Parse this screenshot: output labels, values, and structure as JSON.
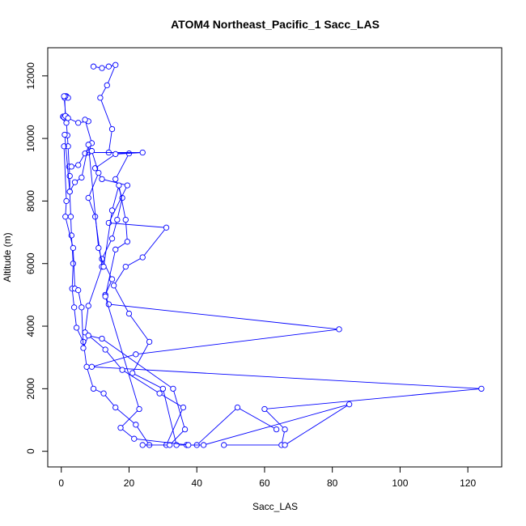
{
  "chart_data": {
    "type": "line",
    "title": "ATOM4 Northeast_Pacific_1 Sacc_LAS",
    "xlabel": "Sacc_LAS",
    "ylabel": "Altitude (m)",
    "xlim": [
      -4,
      130
    ],
    "ylim": [
      -500,
      12900
    ],
    "x_ticks": [
      0,
      20,
      40,
      60,
      80,
      100,
      120
    ],
    "y_ticks": [
      0,
      2000,
      4000,
      6000,
      8000,
      10000,
      12000
    ],
    "grid": false,
    "marker": "open-circle",
    "color": "#0000ff",
    "series": [
      {
        "values": [
          [
            0.5,
            10700
          ],
          [
            1.0,
            10650
          ],
          [
            1.5,
            10700
          ],
          [
            0.8,
            10680
          ],
          [
            1.2,
            10720
          ],
          [
            1.0,
            11300
          ],
          [
            1.5,
            11350
          ],
          [
            2.0,
            11300
          ],
          [
            1.2,
            11350
          ],
          [
            0.8,
            11350
          ],
          [
            1.5,
            10500
          ],
          [
            1.8,
            10100
          ],
          [
            2.0,
            9750
          ],
          [
            2.3,
            9100
          ],
          [
            2.5,
            8800
          ],
          [
            2.5,
            8300
          ],
          [
            2.8,
            7500
          ],
          [
            3.0,
            6900
          ],
          [
            3.5,
            6000
          ],
          [
            3.2,
            5200
          ],
          [
            3.8,
            4600
          ],
          [
            4.5,
            3950
          ],
          [
            6.5,
            3500
          ],
          [
            7.5,
            2700
          ],
          [
            9.5,
            2000
          ],
          [
            12.5,
            1850
          ],
          [
            16.0,
            1400
          ],
          [
            22.0,
            850
          ],
          [
            26.0,
            200
          ]
        ]
      },
      {
        "values": [
          [
            9.5,
            12300
          ],
          [
            12.0,
            12250
          ],
          [
            14.0,
            12300
          ],
          [
            16.0,
            12350
          ],
          [
            13.5,
            11700
          ],
          [
            11.5,
            11300
          ],
          [
            15.0,
            10300
          ],
          [
            14.0,
            9550
          ],
          [
            20.0,
            9520
          ],
          [
            16.0,
            8700
          ],
          [
            18.0,
            8100
          ],
          [
            16.5,
            7400
          ],
          [
            15.0,
            6800
          ],
          [
            12.0,
            6150
          ],
          [
            15.0,
            5500
          ],
          [
            13.0,
            5000
          ],
          [
            14.0,
            4700
          ],
          [
            82.0,
            3900
          ],
          [
            22.0,
            3100
          ],
          [
            9.0,
            2700
          ],
          [
            124.0,
            2000
          ],
          [
            60.0,
            1350
          ],
          [
            66.0,
            700
          ],
          [
            65.0,
            200
          ],
          [
            48.0,
            200
          ]
        ]
      },
      {
        "values": [
          [
            2.0,
            10650
          ],
          [
            5.0,
            10500
          ],
          [
            8.0,
            10550
          ],
          [
            7.0,
            10600
          ],
          [
            9.0,
            9850
          ],
          [
            8.0,
            9550
          ],
          [
            24.0,
            9550
          ],
          [
            16.0,
            9500
          ],
          [
            10.0,
            9050
          ],
          [
            12.0,
            8700
          ],
          [
            19.5,
            8500
          ],
          [
            14.0,
            7300
          ],
          [
            31.0,
            7150
          ],
          [
            24.0,
            6200
          ],
          [
            19.0,
            5900
          ],
          [
            15.5,
            5300
          ],
          [
            20.0,
            4400
          ],
          [
            26.0,
            3500
          ],
          [
            21.0,
            2500
          ],
          [
            30.0,
            2000
          ],
          [
            34.0,
            200
          ],
          [
            37.0,
            200
          ],
          [
            40.0,
            200
          ],
          [
            52.0,
            1400
          ],
          [
            63.5,
            700
          ]
        ]
      },
      {
        "values": [
          [
            3.0,
            9100
          ],
          [
            5.0,
            9150
          ],
          [
            7.0,
            9520
          ],
          [
            9.0,
            9600
          ],
          [
            11.0,
            8900
          ],
          [
            8.0,
            8100
          ],
          [
            10.0,
            7500
          ],
          [
            12.0,
            5900
          ],
          [
            8.0,
            4650
          ],
          [
            7.0,
            3800
          ],
          [
            13.0,
            3250
          ],
          [
            18.0,
            2600
          ],
          [
            29.0,
            1850
          ],
          [
            36.0,
            1400
          ],
          [
            31.0,
            200
          ]
        ]
      },
      {
        "values": [
          [
            0.8,
            9750
          ],
          [
            1.5,
            8000
          ],
          [
            1.2,
            7500
          ],
          [
            3.5,
            6500
          ],
          [
            4.0,
            5200
          ],
          [
            5.0,
            5150
          ],
          [
            6.0,
            4600
          ],
          [
            6.5,
            3300
          ],
          [
            8.0,
            3700
          ],
          [
            12.0,
            3600
          ],
          [
            33.0,
            2000
          ],
          [
            36.5,
            700
          ],
          [
            32.0,
            200
          ],
          [
            24.0,
            200
          ]
        ]
      },
      {
        "values": [
          [
            1.0,
            10120
          ],
          [
            2.5,
            8300
          ],
          [
            4.0,
            8600
          ],
          [
            6.0,
            8750
          ],
          [
            8.0,
            9800
          ],
          [
            11.0,
            6500
          ],
          [
            12.5,
            5900
          ],
          [
            15.0,
            7700
          ],
          [
            17.0,
            8500
          ],
          [
            19.0,
            7400
          ],
          [
            19.5,
            6700
          ],
          [
            16.0,
            6450
          ],
          [
            13.0,
            4950
          ],
          [
            23.0,
            1350
          ],
          [
            17.5,
            750
          ],
          [
            21.5,
            400
          ],
          [
            37.5,
            200
          ],
          [
            42.0,
            200
          ],
          [
            85.0,
            1500
          ],
          [
            66.0,
            200
          ]
        ]
      }
    ]
  }
}
